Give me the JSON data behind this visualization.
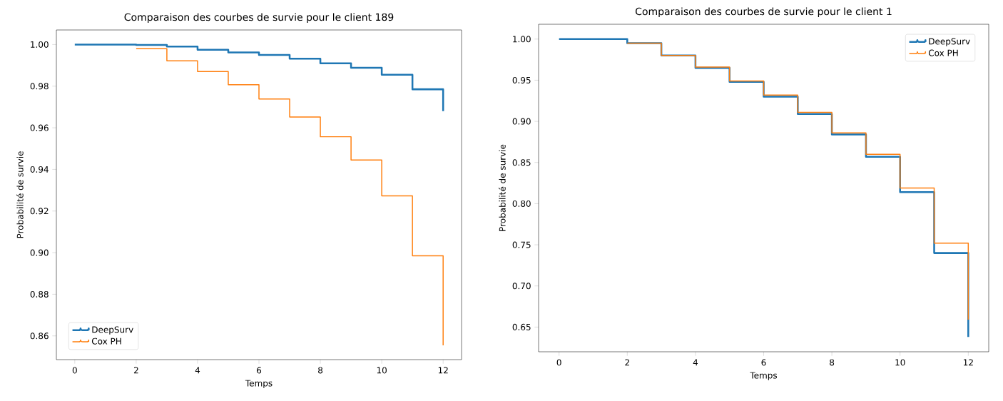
{
  "chart_data": [
    {
      "type": "step",
      "title": "Comparaison des courbes de survie pour le client 189",
      "xlabel": "Temps",
      "ylabel": "Probabilité de survie",
      "legend": "bottom left",
      "xlim": [
        -0.6,
        12.6
      ],
      "ylim": [
        0.8486,
        1.007
      ],
      "xticks": [
        0,
        2,
        4,
        6,
        8,
        10,
        12
      ],
      "yticks": [
        {
          "value": 0.86,
          "label": "0.86"
        },
        {
          "value": 0.88,
          "label": "0.88"
        },
        {
          "value": 0.9,
          "label": "0.90"
        },
        {
          "value": 0.92,
          "label": "0.92"
        },
        {
          "value": 0.94,
          "label": "0.94"
        },
        {
          "value": 0.96,
          "label": "0.96"
        },
        {
          "value": 0.98,
          "label": "0.98"
        },
        {
          "value": 1.0,
          "label": "1.00"
        }
      ],
      "series": [
        {
          "name": "DeepSurv",
          "color": "#1f77b4",
          "x": [
            0,
            2,
            3,
            4,
            5,
            6,
            7,
            8,
            9,
            10,
            11,
            12
          ],
          "values": [
            1.0,
            0.9998,
            0.999,
            0.9975,
            0.9962,
            0.995,
            0.9932,
            0.991,
            0.9888,
            0.9855,
            0.9785,
            0.968
          ]
        },
        {
          "name": "Cox PH",
          "color": "#ff7f0e",
          "x": [
            2,
            3,
            4,
            5,
            6,
            7,
            8,
            9,
            10,
            11,
            12
          ],
          "values": [
            0.998,
            0.9922,
            0.987,
            0.9807,
            0.9738,
            0.9652,
            0.9557,
            0.9445,
            0.9273,
            0.8985,
            0.8555
          ]
        }
      ]
    },
    {
      "type": "step",
      "title": "Comparaison des courbes de survie pour le client 1",
      "xlabel": "Temps",
      "ylabel": "Probabilité de survie",
      "legend": "top right",
      "xlim": [
        -0.6,
        12.6
      ],
      "ylim": [
        0.62,
        1.018
      ],
      "xticks": [
        0,
        2,
        4,
        6,
        8,
        10,
        12
      ],
      "yticks": [
        {
          "value": 0.65,
          "label": "0.65"
        },
        {
          "value": 0.7,
          "label": "0.70"
        },
        {
          "value": 0.75,
          "label": "0.75"
        },
        {
          "value": 0.8,
          "label": "0.80"
        },
        {
          "value": 0.85,
          "label": "0.85"
        },
        {
          "value": 0.9,
          "label": "0.90"
        },
        {
          "value": 0.95,
          "label": "0.95"
        },
        {
          "value": 1.0,
          "label": "1.00"
        }
      ],
      "series": [
        {
          "name": "DeepSurv",
          "color": "#1f77b4",
          "x": [
            0,
            2,
            3,
            4,
            5,
            6,
            7,
            8,
            9,
            10,
            11,
            12
          ],
          "values": [
            1.0,
            0.995,
            0.98,
            0.965,
            0.948,
            0.93,
            0.909,
            0.884,
            0.857,
            0.814,
            0.74,
            0.638
          ]
        },
        {
          "name": "Cox PH",
          "color": "#ff7f0e",
          "x": [
            2,
            3,
            4,
            5,
            6,
            7,
            8,
            9,
            10,
            11,
            12
          ],
          "values": [
            0.995,
            0.98,
            0.966,
            0.949,
            0.932,
            0.911,
            0.886,
            0.86,
            0.819,
            0.752,
            0.659
          ]
        }
      ]
    }
  ]
}
